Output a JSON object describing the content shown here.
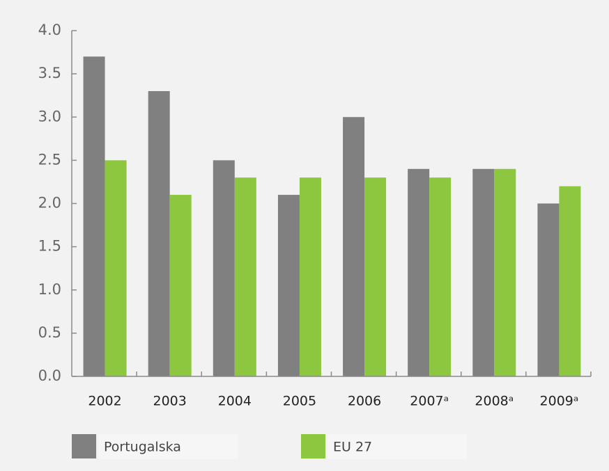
{
  "chart_data": {
    "type": "bar",
    "categories": [
      "2002",
      "2003",
      "2004",
      "2005",
      "2006",
      "2007ᵃ",
      "2008ᵃ",
      "2009ᵃ"
    ],
    "series": [
      {
        "name": "Portugalska",
        "color": "#808080",
        "values": [
          3.7,
          3.3,
          2.5,
          2.1,
          3.0,
          2.4,
          2.4,
          2.0
        ]
      },
      {
        "name": "EU 27",
        "color": "#8dc63f",
        "values": [
          2.5,
          2.1,
          2.3,
          2.3,
          2.3,
          2.3,
          2.4,
          2.2
        ]
      }
    ],
    "ylim": [
      0,
      4
    ],
    "yticks": [
      {
        "value": 0,
        "label": "0.0"
      },
      0.5,
      {
        "value": 1,
        "label": "1.0"
      },
      1.5,
      {
        "value": 2,
        "label": "2.0"
      },
      2.5,
      {
        "value": 3,
        "label": "3.0"
      },
      3.5,
      {
        "value": 4,
        "label": "4.0"
      }
    ],
    "grid": false,
    "legend": "bottom"
  }
}
